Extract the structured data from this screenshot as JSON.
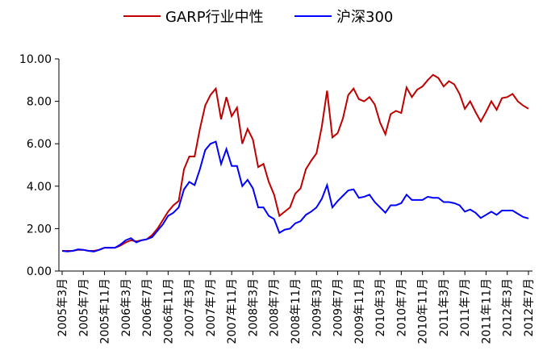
{
  "chart_data": {
    "type": "line",
    "categories": [
      "2005年3月",
      null,
      null,
      null,
      "2005年7月",
      null,
      null,
      null,
      "2005年11月",
      null,
      null,
      null,
      "2006年3月",
      null,
      null,
      null,
      "2006年7月",
      null,
      null,
      null,
      "2006年11月",
      null,
      null,
      null,
      "2007年3月",
      null,
      null,
      null,
      "2007年7月",
      null,
      null,
      null,
      "2007年11月",
      null,
      null,
      null,
      "2008年3月",
      null,
      null,
      null,
      "2008年7月",
      null,
      null,
      null,
      "2008年11月",
      null,
      null,
      null,
      "2009年3月",
      null,
      null,
      null,
      "2009年7月",
      null,
      null,
      null,
      "2009年11月",
      null,
      null,
      null,
      "2010年3月",
      null,
      null,
      null,
      "2010年7月",
      null,
      null,
      null,
      "2010年11月",
      null,
      null,
      null,
      "2011年3月",
      null,
      null,
      null,
      "2011年7月",
      null,
      null,
      null,
      "2011年11月",
      null,
      null,
      null,
      "2012年3月",
      null,
      null,
      null,
      "2012年7月"
    ],
    "series": [
      {
        "name": "GARP行业中性",
        "color": "#c00000",
        "values": [
          0.95,
          0.95,
          0.95,
          1.0,
          1.0,
          0.95,
          0.95,
          1.0,
          1.1,
          1.1,
          1.1,
          1.2,
          1.35,
          1.45,
          1.4,
          1.45,
          1.5,
          1.7,
          2.0,
          2.4,
          2.8,
          3.1,
          3.3,
          4.8,
          5.4,
          5.4,
          6.7,
          7.8,
          8.3,
          8.6,
          7.15,
          8.2,
          7.3,
          7.7,
          6.0,
          6.7,
          6.2,
          4.9,
          5.05,
          4.2,
          3.6,
          2.6,
          2.8,
          3.0,
          3.65,
          3.9,
          4.8,
          5.2,
          5.55,
          6.8,
          8.5,
          6.3,
          6.5,
          7.2,
          8.3,
          8.6,
          8.1,
          8.0,
          8.2,
          7.85,
          7.0,
          6.45,
          7.4,
          7.55,
          7.45,
          8.65,
          8.2,
          8.55,
          8.7,
          9.0,
          9.25,
          9.1,
          8.7,
          8.95,
          8.8,
          8.35,
          7.65,
          8.0,
          7.5,
          7.05,
          7.5,
          8.0,
          7.6,
          8.15,
          8.2,
          8.35,
          8.0,
          7.8,
          7.65
        ]
      },
      {
        "name": "沪深300",
        "color": "#0000ff",
        "values": [
          0.95,
          0.92,
          0.95,
          1.02,
          1.0,
          0.95,
          0.92,
          1.0,
          1.1,
          1.1,
          1.1,
          1.25,
          1.45,
          1.55,
          1.35,
          1.45,
          1.5,
          1.6,
          1.9,
          2.2,
          2.6,
          2.75,
          3.0,
          3.85,
          4.2,
          4.05,
          4.8,
          5.7,
          6.0,
          6.1,
          5.05,
          5.75,
          4.95,
          4.95,
          4.0,
          4.3,
          3.9,
          3.0,
          3.0,
          2.6,
          2.45,
          1.8,
          1.95,
          2.0,
          2.25,
          2.35,
          2.65,
          2.8,
          3.0,
          3.4,
          4.05,
          3.0,
          3.3,
          3.55,
          3.8,
          3.85,
          3.45,
          3.5,
          3.6,
          3.25,
          3.0,
          2.75,
          3.1,
          3.1,
          3.2,
          3.6,
          3.35,
          3.35,
          3.35,
          3.5,
          3.45,
          3.45,
          3.25,
          3.25,
          3.2,
          3.1,
          2.8,
          2.9,
          2.75,
          2.5,
          2.65,
          2.8,
          2.65,
          2.85,
          2.85,
          2.85,
          2.7,
          2.55,
          2.48
        ]
      }
    ],
    "ylim": [
      0,
      10
    ],
    "yticks": [
      {
        "value": 0,
        "label": "0.00"
      },
      {
        "value": 2,
        "label": "2.00"
      },
      {
        "value": 4,
        "label": "4.00"
      },
      {
        "value": 6,
        "label": "6.00"
      },
      {
        "value": 8,
        "label": "8.00"
      },
      {
        "value": 10,
        "label": "10.00"
      }
    ],
    "grid": false,
    "legend": "top"
  }
}
